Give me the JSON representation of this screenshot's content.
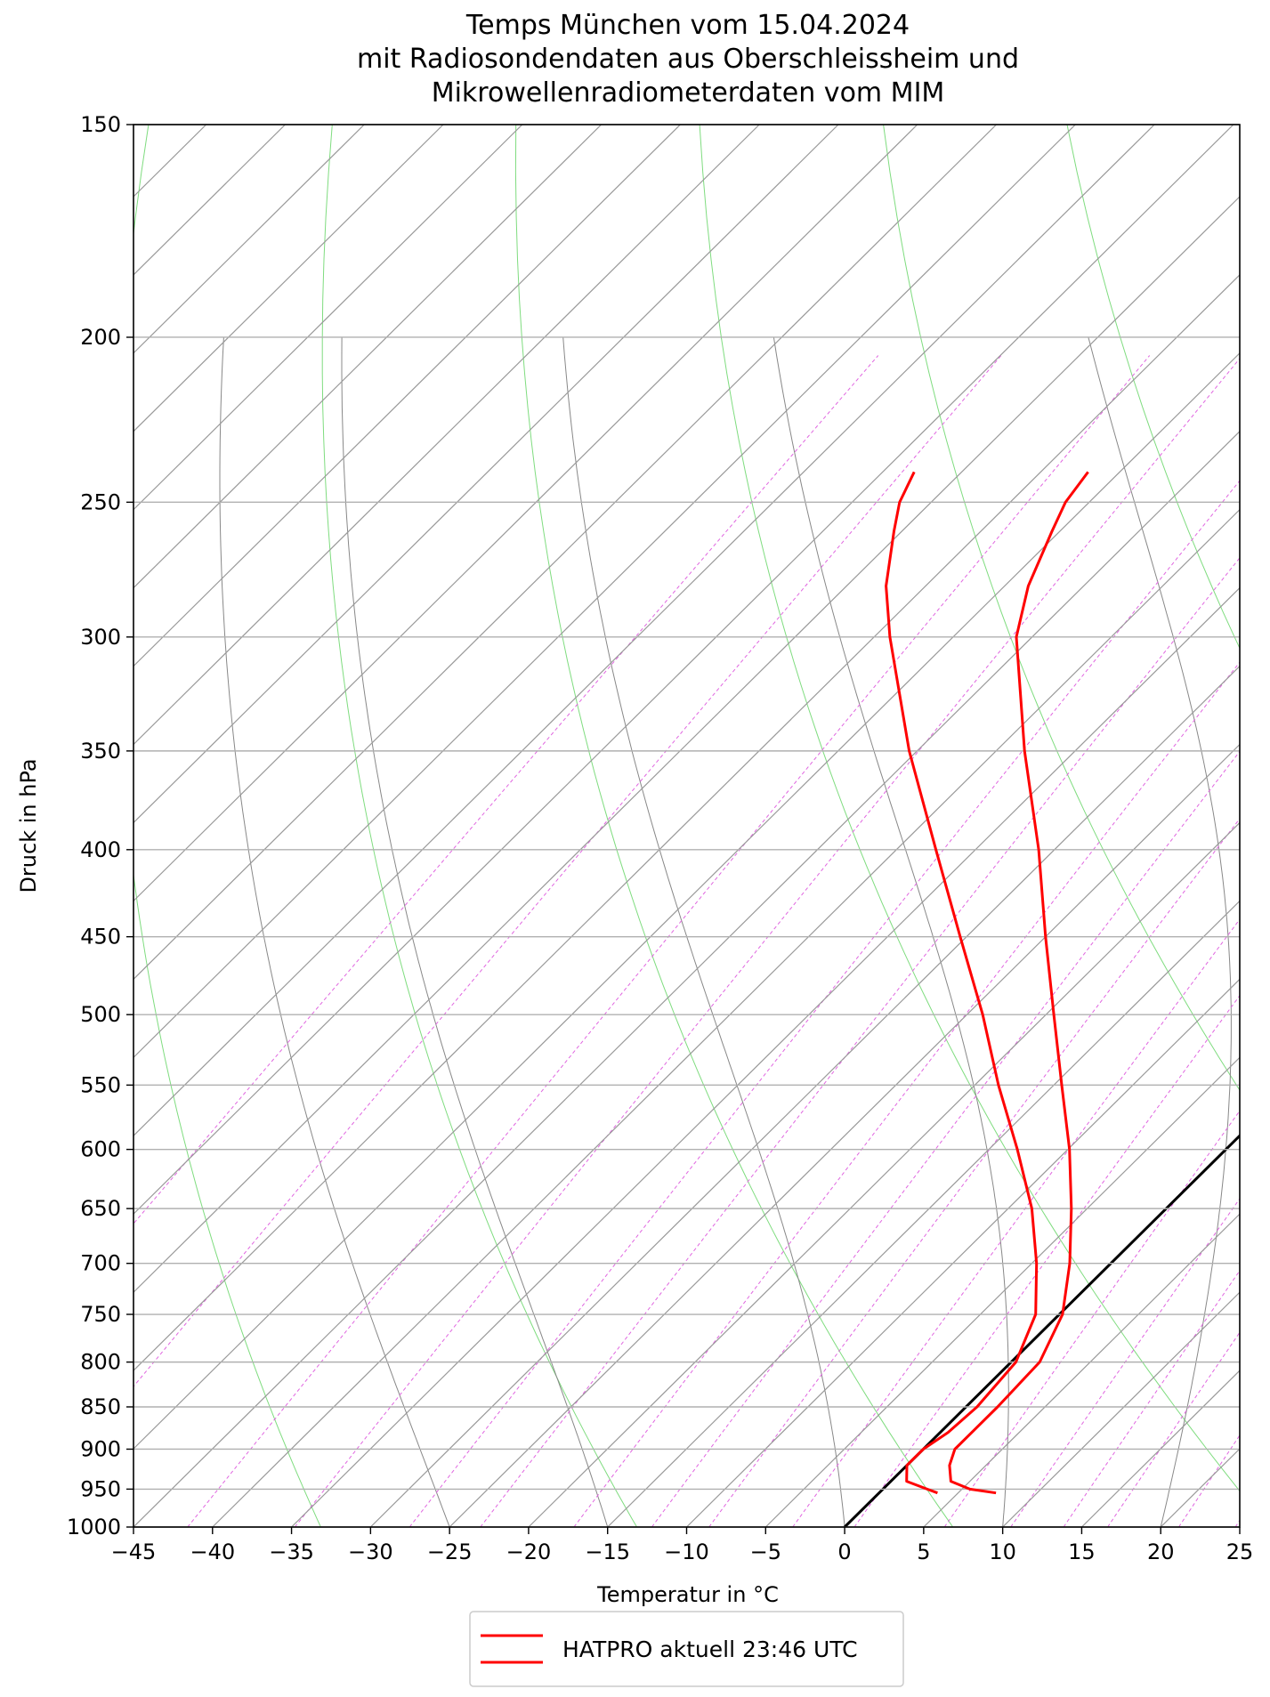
{
  "chart_data": {
    "type": "line",
    "title_lines": [
      "Temps München vom 15.04.2024",
      "mit Radiosondendaten aus Oberschleissheim und",
      "Mikrowellenradiometerdaten vom MIM"
    ],
    "xlabel": "Temperatur in °C",
    "xlabel_text": "Temperatur in",
    "xlabel_unit": "°C",
    "ylabel": "Druck in hPa",
    "xlim": [
      -45,
      25
    ],
    "ylim": [
      1000,
      150
    ],
    "yscale": "log",
    "skew": "skew-T log-p",
    "grid": true,
    "legend_position": "bottom-center",
    "x_ticks": [
      "−45",
      "−40",
      "−35",
      "−30",
      "−25",
      "−20",
      "−15",
      "−10",
      "−5",
      "0",
      "5",
      "10",
      "15",
      "20",
      "25"
    ],
    "y_ticks": [
      "1000",
      "950",
      "900",
      "850",
      "800",
      "750",
      "700",
      "650",
      "600",
      "550",
      "500",
      "450",
      "400",
      "350",
      "300",
      "250",
      "200",
      "150"
    ],
    "colors": {
      "profile": "#ff0000",
      "isotherm_zero": "#000000",
      "skewed_isotherms": "#999999",
      "dry_adiabats": "#7fdc7f",
      "moist_adiabats": "#888888",
      "mixing_ratio": "#e066e0",
      "grid": "#b0b0b0"
    },
    "legend": [
      {
        "label": "HATPRO aktuell 23:46 UTC",
        "color": "#ff0000"
      }
    ],
    "series": [
      {
        "name": "HATPRO aktuell 23:46 UTC",
        "role": "temperature",
        "points": [
          {
            "p": 955,
            "t": 7.4
          },
          {
            "p": 950,
            "t": 5.5
          },
          {
            "p": 940,
            "t": 3.8
          },
          {
            "p": 920,
            "t": 2.7
          },
          {
            "p": 900,
            "t": 2.0
          },
          {
            "p": 880,
            "t": 2.0
          },
          {
            "p": 850,
            "t": 2.0
          },
          {
            "p": 800,
            "t": 1.8
          },
          {
            "p": 750,
            "t": 0.2
          },
          {
            "p": 700,
            "t": -2.6
          },
          {
            "p": 650,
            "t": -6.0
          },
          {
            "p": 600,
            "t": -9.9
          },
          {
            "p": 550,
            "t": -14.5
          },
          {
            "p": 500,
            "t": -19.5
          },
          {
            "p": 450,
            "t": -25.0
          },
          {
            "p": 400,
            "t": -31.0
          },
          {
            "p": 350,
            "t": -38.2
          },
          {
            "p": 300,
            "t": -46.0
          },
          {
            "p": 280,
            "t": -48.5
          },
          {
            "p": 260,
            "t": -50.5
          },
          {
            "p": 250,
            "t": -51.5
          },
          {
            "p": 240,
            "t": -52.0
          }
        ]
      },
      {
        "name": "HATPRO aktuell 23:46 UTC",
        "role": "dewpoint",
        "points": [
          {
            "p": 955,
            "t": 3.7
          },
          {
            "p": 950,
            "t": 2.8
          },
          {
            "p": 940,
            "t": 1.0
          },
          {
            "p": 920,
            "t": 0.0
          },
          {
            "p": 900,
            "t": 0.0
          },
          {
            "p": 880,
            "t": 0.5
          },
          {
            "p": 850,
            "t": 0.7
          },
          {
            "p": 800,
            "t": 0.3
          },
          {
            "p": 750,
            "t": -1.5
          },
          {
            "p": 700,
            "t": -4.7
          },
          {
            "p": 650,
            "t": -8.5
          },
          {
            "p": 600,
            "t": -13.2
          },
          {
            "p": 550,
            "t": -18.5
          },
          {
            "p": 500,
            "t": -24.0
          },
          {
            "p": 450,
            "t": -30.4
          },
          {
            "p": 400,
            "t": -37.5
          },
          {
            "p": 350,
            "t": -45.5
          },
          {
            "p": 300,
            "t": -54.0
          },
          {
            "p": 280,
            "t": -57.5
          },
          {
            "p": 260,
            "t": -60.5
          },
          {
            "p": 250,
            "t": -62.0
          },
          {
            "p": 240,
            "t": -63.0
          }
        ]
      }
    ]
  }
}
